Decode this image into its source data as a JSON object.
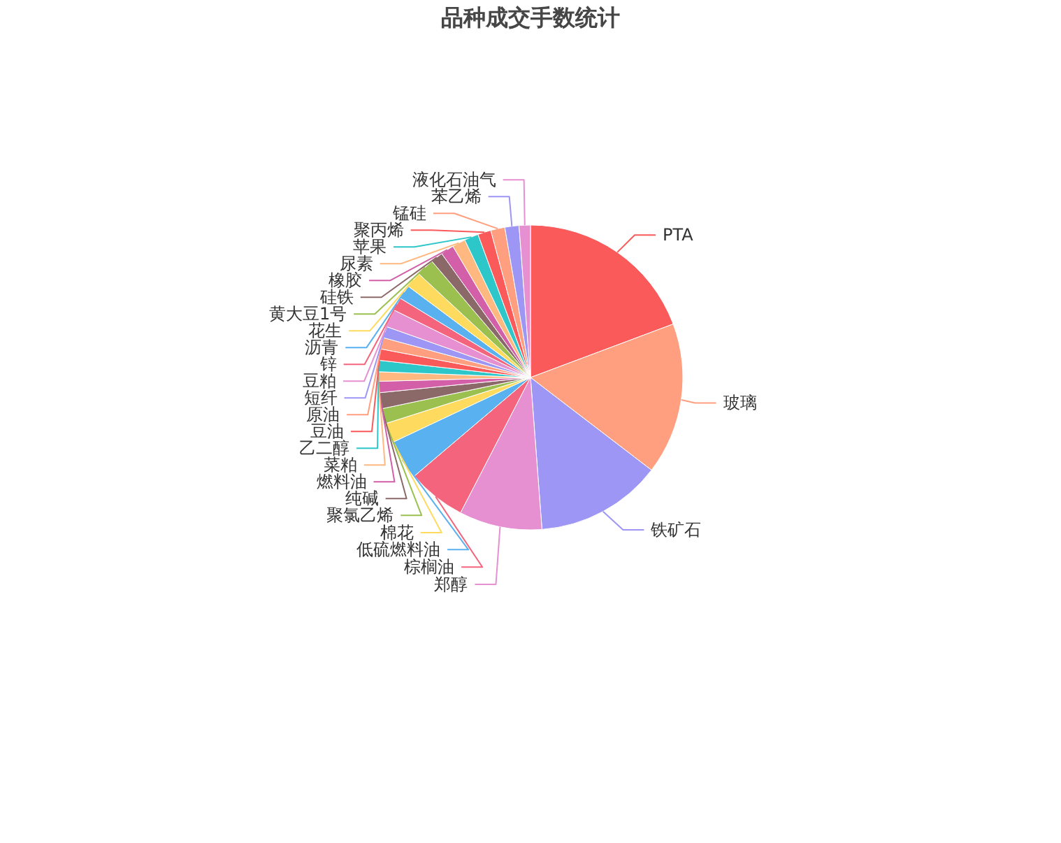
{
  "chart_data": {
    "type": "pie",
    "title": "品种成交手数统计",
    "categories": [
      "PTA",
      "玻璃",
      "铁矿石",
      "郑醇",
      "棕榈油",
      "低硫燃料油",
      "棉花",
      "聚氯乙烯",
      "纯碱",
      "燃料油",
      "菜粕",
      "乙二醇",
      "豆油",
      "原油",
      "短纤",
      "豆粕",
      "锌",
      "沥青",
      "花生",
      "黄大豆1号",
      "硅铁",
      "橡胶",
      "尿素",
      "苹果",
      "聚丙烯",
      "锰硅",
      "苯乙烯",
      "液化石油气"
    ],
    "values": [
      19.3,
      16.1,
      13.4,
      8.8,
      6.2,
      4.2,
      2.1,
      1.6,
      1.7,
      1.2,
      1.0,
      1.2,
      1.2,
      1.2,
      1.2,
      1.9,
      1.4,
      1.5,
      1.7,
      1.9,
      1.3,
      1.4,
      1.4,
      1.5,
      1.4,
      1.5,
      1.5,
      1.2
    ],
    "colors": [
      "#fa5a5a",
      "#ff9f7f",
      "#9d96f5",
      "#e690d1",
      "#f5647d",
      "#5ab1ef",
      "#fedb5e",
      "#9cc04f",
      "#8c6969",
      "#d25fa8",
      "#ffb980",
      "#2ec7c9",
      "#fa5a5a",
      "#ff9f7f",
      "#9d96f5",
      "#e690d1",
      "#f5647d",
      "#5ab1ef",
      "#fedb5e",
      "#9cc04f",
      "#8c6969",
      "#d25fa8",
      "#ffb980",
      "#2ec7c9",
      "#fa5a5a",
      "#ff9f7f",
      "#9d96f5",
      "#e690d1"
    ]
  }
}
